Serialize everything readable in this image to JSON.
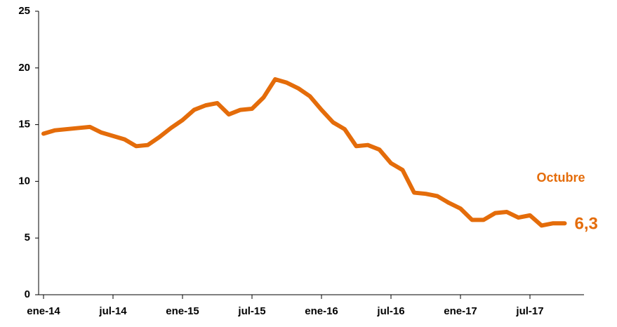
{
  "chart_data": {
    "type": "line",
    "categories": [
      "ene-14",
      null,
      null,
      null,
      null,
      null,
      "jul-14",
      null,
      null,
      null,
      null,
      null,
      "ene-15",
      null,
      null,
      null,
      null,
      null,
      "jul-15",
      null,
      null,
      null,
      null,
      null,
      "ene-16",
      null,
      null,
      null,
      null,
      null,
      "jul-16",
      null,
      null,
      null,
      null,
      null,
      "ene-17",
      null,
      null,
      null,
      null,
      null,
      "jul-17",
      null,
      null,
      null
    ],
    "series": [
      {
        "name": null,
        "color": "#e46c0a",
        "values": [
          14.2,
          14.5,
          14.6,
          14.7,
          14.8,
          14.3,
          14.0,
          13.7,
          13.1,
          13.2,
          13.9,
          14.7,
          15.4,
          16.3,
          16.7,
          16.9,
          15.9,
          16.3,
          16.4,
          17.4,
          19.0,
          18.7,
          18.2,
          17.5,
          16.3,
          15.2,
          14.6,
          13.1,
          13.2,
          12.8,
          11.6,
          11.0,
          9.0,
          8.9,
          8.7,
          8.1,
          7.6,
          6.6,
          6.6,
          7.2,
          7.3,
          6.8,
          7.0,
          6.1,
          6.3,
          6.3
        ],
        "value_labels": [
          null,
          null,
          null,
          null,
          null,
          null,
          null,
          null,
          null,
          null,
          null,
          null,
          null,
          null,
          null,
          null,
          null,
          null,
          null,
          null,
          null,
          null,
          null,
          null,
          null,
          null,
          null,
          null,
          null,
          null,
          null,
          null,
          null,
          null,
          null,
          null,
          null,
          null,
          null,
          null,
          null,
          null,
          null,
          null,
          null,
          "6,3"
        ]
      }
    ],
    "annotation": "Octubre",
    "ylim": [
      0,
      25
    ],
    "yticks": [
      0,
      5,
      10,
      15,
      20,
      25
    ],
    "grid": false
  }
}
